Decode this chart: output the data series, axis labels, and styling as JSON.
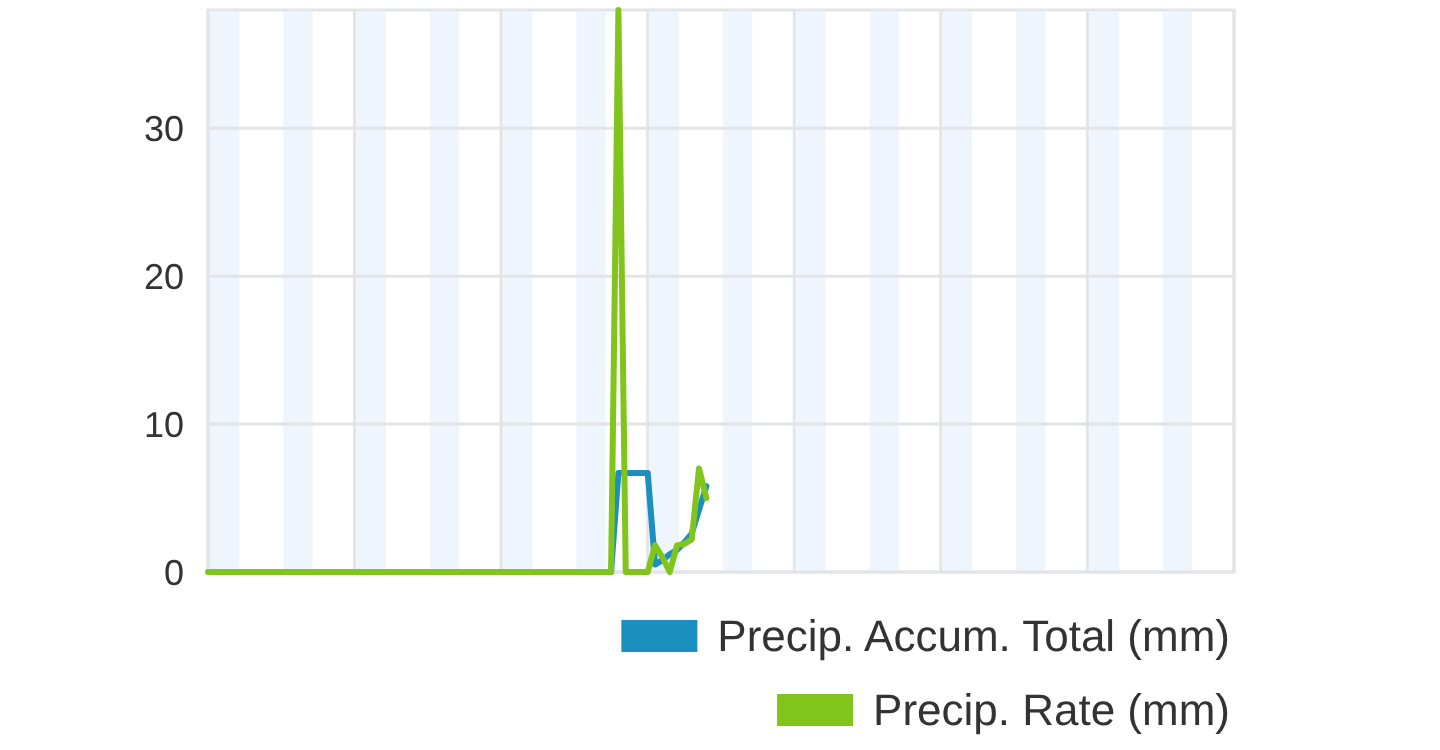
{
  "chart_data": {
    "type": "line",
    "categories": [
      null,
      null,
      null,
      null,
      null,
      null,
      null,
      null,
      null,
      null,
      null,
      null,
      null,
      null,
      null,
      null,
      null,
      null,
      null,
      null,
      null,
      null,
      null,
      null,
      null,
      null,
      null,
      null,
      null,
      null,
      null,
      null,
      null,
      null,
      null,
      null,
      null,
      null,
      null,
      null,
      null,
      null,
      null,
      null,
      null,
      null,
      null,
      null,
      null,
      null,
      null,
      null,
      null,
      null,
      null,
      null,
      null,
      null,
      null,
      null,
      null,
      null,
      null,
      null,
      null,
      null,
      null,
      null,
      null,
      null,
      null,
      null,
      null,
      null,
      null,
      null,
      null,
      null,
      null,
      null,
      null,
      null,
      null,
      null,
      null,
      null,
      null,
      null,
      null,
      null,
      null,
      null,
      null,
      null,
      null,
      null,
      null,
      null,
      null,
      null,
      null,
      null,
      null,
      null,
      null,
      null,
      null,
      null,
      null,
      null,
      null,
      null,
      null,
      null,
      null,
      null,
      null,
      null,
      null,
      null,
      null,
      null,
      null,
      null,
      null,
      null,
      null,
      null,
      null,
      null,
      null,
      null,
      null,
      null,
      null,
      null,
      null,
      null,
      null,
      null,
      null
    ],
    "series": [
      {
        "name": "Precip. Accum. Total (mm)",
        "color": "#1b8fc0",
        "values": [
          null,
          null,
          null,
          null,
          null,
          null,
          null,
          null,
          null,
          null,
          null,
          null,
          null,
          null,
          null,
          null,
          null,
          null,
          null,
          null,
          null,
          null,
          null,
          null,
          null,
          null,
          null,
          null,
          null,
          null,
          null,
          null,
          null,
          null,
          null,
          null,
          null,
          null,
          null,
          null,
          null,
          null,
          null,
          null,
          null,
          null,
          null,
          null,
          null,
          null,
          null,
          null,
          null,
          null,
          null,
          0,
          6.7,
          6.7,
          6.7,
          6.7,
          6.7,
          0.5,
          0.8,
          1.2,
          1.5,
          2,
          2.6,
          4.2,
          5.8,
          null,
          null,
          null,
          null,
          null,
          null,
          null,
          null,
          null,
          null,
          null,
          null,
          null,
          null,
          null,
          null,
          null,
          null,
          null,
          null,
          null,
          null,
          null,
          null,
          null,
          null,
          null,
          null,
          null,
          null,
          null,
          null,
          null,
          null,
          null,
          null,
          null,
          null,
          null,
          null,
          null,
          null,
          null,
          null,
          null,
          null,
          null,
          null,
          null,
          null,
          null,
          null,
          null,
          null,
          null,
          null,
          null,
          null,
          null,
          null,
          null,
          null,
          null,
          null,
          null,
          null,
          null,
          null,
          null,
          null,
          null,
          null
        ]
      },
      {
        "name": "Precip. Rate (mm)",
        "color": "#80c41c",
        "values": [
          0,
          0,
          0,
          0,
          0,
          0,
          0,
          0,
          0,
          0,
          0,
          0,
          0,
          0,
          0,
          0,
          0,
          0,
          0,
          0,
          0,
          0,
          0,
          0,
          0,
          0,
          0,
          0,
          0,
          0,
          0,
          0,
          0,
          0,
          0,
          0,
          0,
          0,
          0,
          0,
          0,
          0,
          0,
          0,
          0,
          0,
          0,
          0,
          0,
          0,
          0,
          0,
          0,
          0,
          0,
          0,
          38,
          0,
          0,
          0,
          0,
          1.8,
          1,
          0,
          1.8,
          1.9,
          2.2,
          7,
          5,
          null,
          null,
          null,
          null,
          null,
          null,
          null,
          null,
          null,
          null,
          null,
          null,
          null,
          null,
          null,
          null,
          null,
          null,
          null,
          null,
          null,
          null,
          null,
          null,
          null,
          null,
          null,
          null,
          null,
          null,
          null,
          null,
          null,
          null,
          null,
          null,
          null,
          null,
          null,
          null,
          null,
          null,
          null,
          null,
          null,
          null,
          null,
          null,
          null,
          null,
          null,
          null,
          null,
          null,
          null,
          null,
          null,
          null,
          null,
          null,
          null,
          null,
          null,
          null,
          null,
          null,
          null,
          null,
          null,
          null,
          null,
          null
        ]
      }
    ],
    "ylim": [
      0,
      38
    ],
    "yticks": [
      0,
      10,
      20,
      30
    ],
    "tick_labels": "y",
    "grid": true,
    "legend": "bottom right",
    "marker": "none",
    "line_style": "solid"
  }
}
